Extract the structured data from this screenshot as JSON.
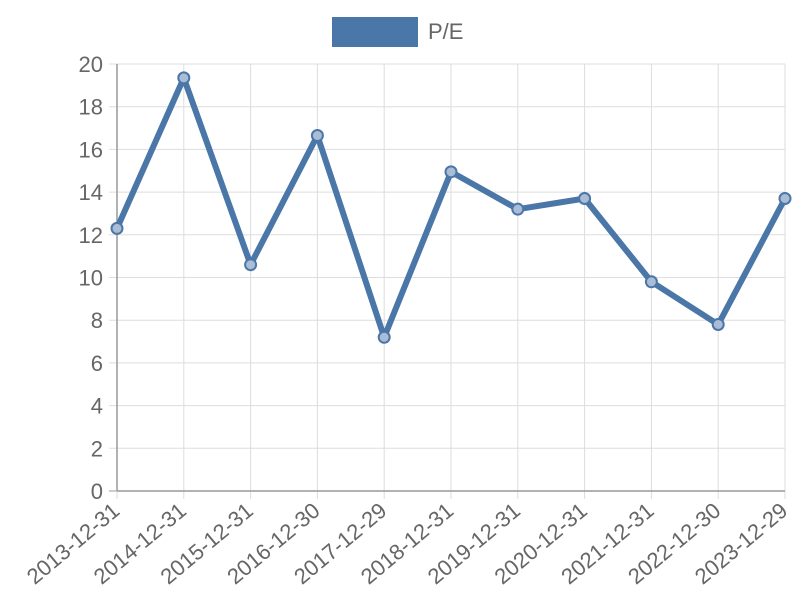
{
  "chart_data": {
    "type": "line",
    "title": "",
    "xlabel": "",
    "ylabel": "",
    "legend": {
      "placement": "top-center",
      "entries": [
        {
          "label": "P/E",
          "color": "#4a76a8"
        }
      ]
    },
    "categories": [
      "2013-12-31",
      "2014-12-31",
      "2015-12-31",
      "2016-12-30",
      "2017-12-29",
      "2018-12-31",
      "2019-12-31",
      "2020-12-31",
      "2021-12-31",
      "2022-12-30",
      "2023-12-29"
    ],
    "series": [
      {
        "name": "P/E",
        "color": "#4a76a8",
        "values": [
          12.3,
          19.35,
          10.6,
          16.65,
          7.2,
          14.95,
          13.2,
          13.7,
          9.8,
          7.8,
          13.7
        ]
      }
    ],
    "ylim": [
      0,
      20
    ],
    "yticks": [
      "0",
      "2",
      "4",
      "6",
      "8",
      "10",
      "12",
      "14",
      "16",
      "18",
      "20"
    ],
    "grid": true
  }
}
